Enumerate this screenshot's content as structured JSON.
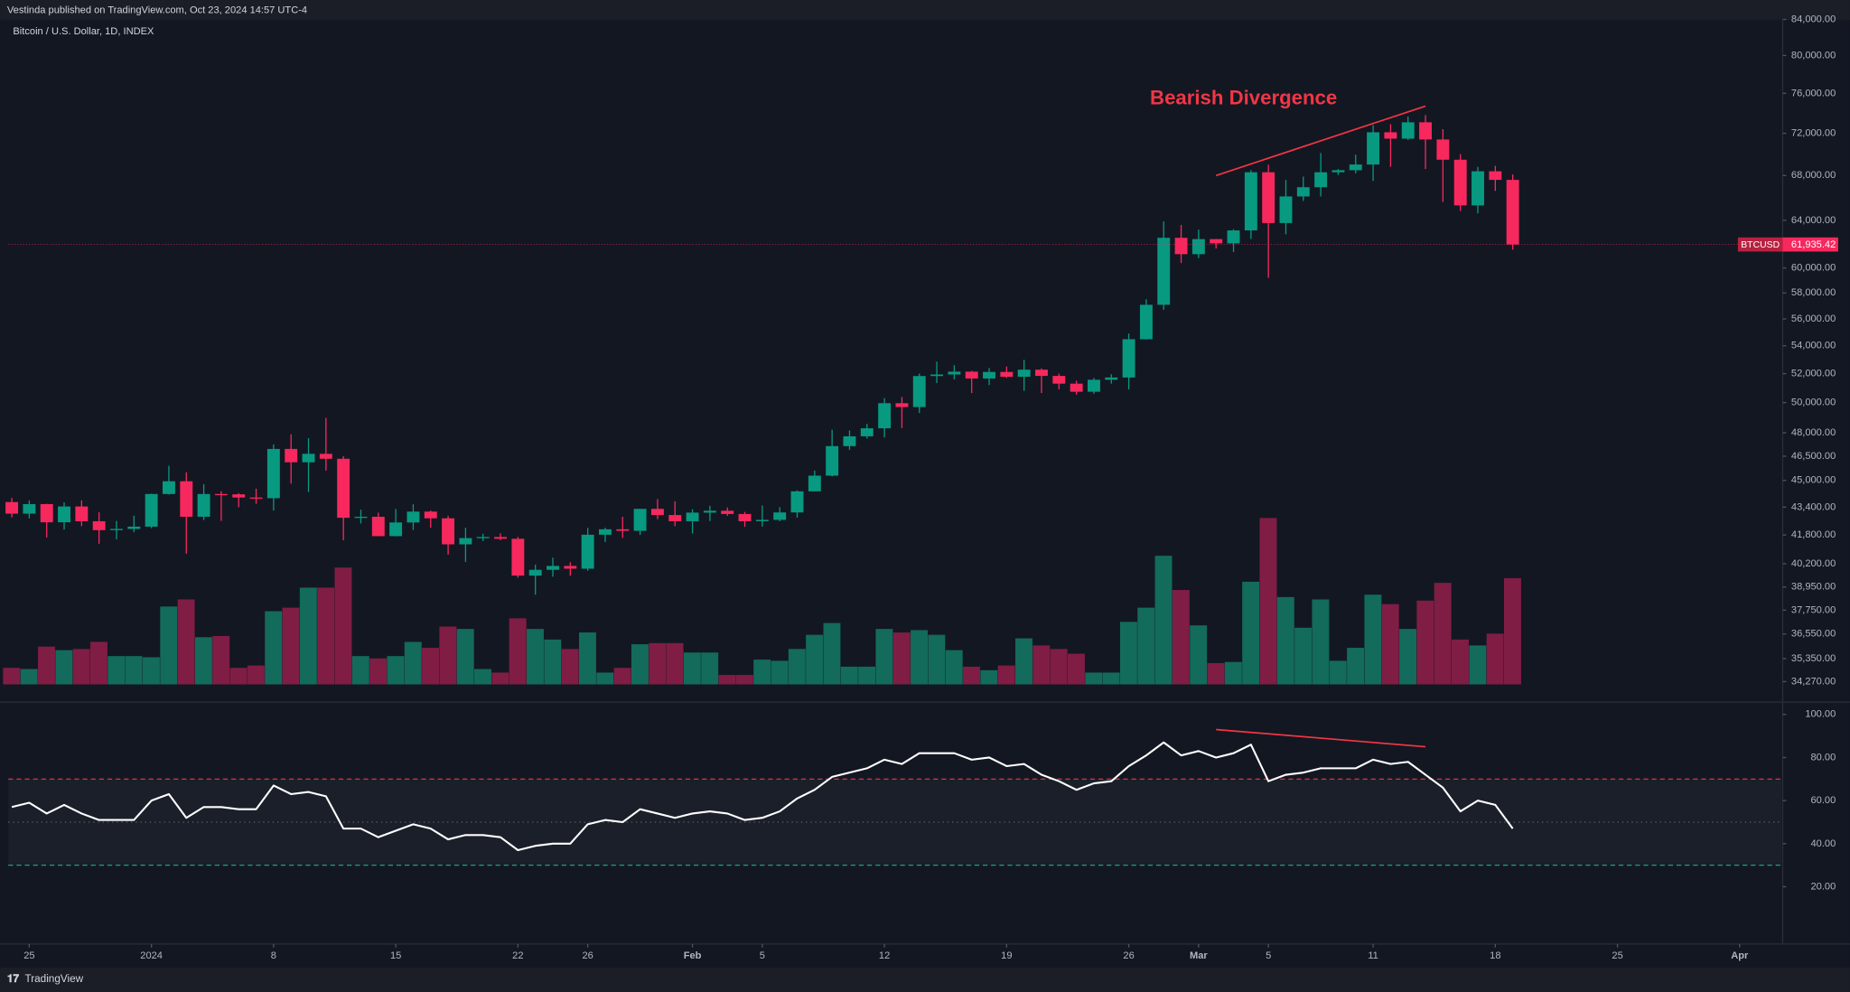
{
  "header": {
    "publisher": "Vestinda published on TradingView.com, Oct 23, 2024 14:57 UTC-4"
  },
  "footer": {
    "brand": "TradingView"
  },
  "chart_data": [
    {
      "type": "candlestick",
      "title": "Bitcoin / U.S. Dollar, 1D, INDEX",
      "symbol": "BTCUSD",
      "last_price_label": "61,935.42",
      "log_scale": true,
      "grid": false,
      "up_color": "#089981",
      "down_color": "#f7285d",
      "xlim": [
        -0.2,
        101.4
      ],
      "xticks": [
        {
          "value": 1,
          "label": "25"
        },
        {
          "value": 8,
          "label": "2024"
        },
        {
          "value": 15,
          "label": "8"
        },
        {
          "value": 22,
          "label": "15"
        },
        {
          "value": 29,
          "label": "22"
        },
        {
          "value": 33,
          "label": "26"
        },
        {
          "value": 39,
          "label": "Feb"
        },
        {
          "value": 43,
          "label": "5"
        },
        {
          "value": 50,
          "label": "12"
        },
        {
          "value": 57,
          "label": "19"
        },
        {
          "value": 64,
          "label": "26"
        },
        {
          "value": 68,
          "label": "Mar"
        },
        {
          "value": 72,
          "label": "5"
        },
        {
          "value": 78,
          "label": "11"
        },
        {
          "value": 85,
          "label": "18"
        },
        {
          "value": 92,
          "label": "25"
        },
        {
          "value": 99,
          "label": "Apr"
        }
      ],
      "ylim": [
        33600,
        83930
      ],
      "yticks": [
        {
          "value": 84000,
          "label": "84,000.00"
        },
        {
          "value": 80000,
          "label": "80,000.00"
        },
        {
          "value": 76000,
          "label": "76,000.00"
        },
        {
          "value": 72000,
          "label": "72,000.00"
        },
        {
          "value": 68000,
          "label": "68,000.00"
        },
        {
          "value": 64000,
          "label": "64,000.00"
        },
        {
          "value": 60000,
          "label": "60,000.00"
        },
        {
          "value": 58000,
          "label": "58,000.00"
        },
        {
          "value": 56000,
          "label": "56,000.00"
        },
        {
          "value": 54000,
          "label": "54,000.00"
        },
        {
          "value": 52000,
          "label": "52,000.00"
        },
        {
          "value": 50000,
          "label": "50,000.00"
        },
        {
          "value": 48000,
          "label": "48,000.00"
        },
        {
          "value": 46500,
          "label": "46,500.00"
        },
        {
          "value": 45000,
          "label": "45,000.00"
        },
        {
          "value": 43400,
          "label": "43,400.00"
        },
        {
          "value": 41800,
          "label": "41,800.00"
        },
        {
          "value": 40200,
          "label": "40,200.00"
        },
        {
          "value": 38950,
          "label": "38,950.00"
        },
        {
          "value": 37750,
          "label": "37,750.00"
        },
        {
          "value": 36550,
          "label": "36,550.00"
        },
        {
          "value": 35350,
          "label": "35,350.00"
        },
        {
          "value": 34270,
          "label": "34,270.00"
        }
      ],
      "open": [
        43700,
        43020,
        43580,
        42520,
        43440,
        42580,
        42070,
        42140,
        42270,
        44180,
        44950,
        42840,
        44180,
        44160,
        43970,
        43930,
        46960,
        46120,
        46650,
        46340,
        42780,
        42840,
        41730,
        42510,
        43140,
        42750,
        41270,
        41620,
        41680,
        41580,
        39560,
        39870,
        40080,
        39930,
        41810,
        42120,
        42030,
        43300,
        42940,
        42580,
        43080,
        43190,
        43000,
        42580,
        42660,
        43090,
        44340,
        45290,
        47140,
        47770,
        48290,
        49960,
        49700,
        51830,
        51940,
        52140,
        51660,
        52120,
        51780,
        52280,
        51840,
        51300,
        50740,
        51570,
        51730,
        54480,
        57080,
        62500,
        61130,
        62390,
        62030,
        63130,
        68300,
        63760,
        66100,
        66930,
        68300,
        68490,
        69020,
        72100,
        71480,
        73080,
        71400,
        69470,
        65300,
        68390,
        67600
      ],
      "high": [
        43950,
        43800,
        43600,
        43680,
        43800,
        43100,
        42600,
        42900,
        44200,
        45900,
        45500,
        44770,
        44350,
        44230,
        44500,
        47250,
        47900,
        47650,
        48970,
        46500,
        43250,
        43080,
        43300,
        43570,
        43200,
        42900,
        42200,
        41870,
        41890,
        41690,
        40150,
        40530,
        40280,
        42200,
        42200,
        42840,
        43300,
        43880,
        43750,
        43280,
        43480,
        43380,
        43120,
        43500,
        43400,
        44400,
        45600,
        48200,
        48150,
        48580,
        50300,
        50380,
        52000,
        52850,
        52600,
        52200,
        52400,
        52500,
        52980,
        52370,
        52000,
        51500,
        51700,
        51960,
        54900,
        57500,
        63900,
        63600,
        63200,
        62400,
        63230,
        68500,
        69000,
        67600,
        67900,
        70100,
        68600,
        69950,
        72800,
        72900,
        73650,
        73800,
        72400,
        70000,
        68800,
        68900,
        68100
      ],
      "low": [
        42800,
        42750,
        41650,
        42100,
        42300,
        41300,
        41550,
        41950,
        42180,
        44150,
        40750,
        42650,
        42600,
        43400,
        43600,
        43200,
        44800,
        44300,
        45600,
        41500,
        42450,
        41720,
        41720,
        42080,
        42200,
        40700,
        40300,
        41450,
        41500,
        39450,
        38550,
        39500,
        39550,
        39820,
        41400,
        41630,
        41800,
        42700,
        42300,
        41880,
        42590,
        42890,
        42260,
        42270,
        42580,
        42790,
        44340,
        45240,
        46900,
        47630,
        47700,
        48300,
        49300,
        51340,
        51600,
        50650,
        51200,
        51700,
        50800,
        50650,
        50900,
        50550,
        50600,
        51300,
        50900,
        54450,
        56700,
        60400,
        60800,
        61600,
        61300,
        62400,
        59200,
        62800,
        65700,
        66100,
        68050,
        68200,
        67500,
        68800,
        71350,
        68600,
        65600,
        64800,
        64600,
        66600,
        61500
      ],
      "close": [
        43020,
        43580,
        42520,
        43440,
        42580,
        42070,
        42140,
        42270,
        44180,
        44950,
        42840,
        44180,
        44160,
        43970,
        43930,
        46960,
        46120,
        46650,
        46340,
        42780,
        42840,
        41730,
        42510,
        43140,
        42750,
        41270,
        41620,
        41680,
        41580,
        39560,
        39870,
        40080,
        39930,
        41810,
        42120,
        42030,
        43300,
        42940,
        42580,
        43080,
        43190,
        43000,
        42580,
        42660,
        43090,
        44340,
        45290,
        47140,
        47770,
        48290,
        49960,
        49700,
        51830,
        51940,
        52140,
        51660,
        52120,
        51780,
        52280,
        51840,
        51300,
        50740,
        51570,
        51730,
        54480,
        57080,
        62500,
        61130,
        62390,
        62030,
        63130,
        68300,
        63760,
        66100,
        66930,
        68300,
        68490,
        69020,
        72100,
        71480,
        73080,
        71400,
        69470,
        65300,
        68390,
        67600,
        61935.42
      ],
      "annotation": {
        "text": "Bearish Divergence",
        "color": "#f23645",
        "x": [
          69,
          81
        ],
        "y": [
          68000,
          74700
        ]
      }
    },
    {
      "type": "volume",
      "up_color": "#136b5b",
      "down_color": "#801d45",
      "values": [
        14,
        13,
        32,
        29,
        30,
        36,
        24,
        24,
        23,
        66,
        72,
        40,
        41,
        14,
        16,
        62,
        65,
        82,
        82,
        99,
        24,
        22,
        24,
        36,
        31,
        49,
        47,
        13,
        10,
        56,
        47,
        38,
        30,
        44,
        10,
        14,
        34,
        35,
        35,
        27,
        27,
        8,
        8,
        21,
        20,
        30,
        42,
        52,
        15,
        15,
        47,
        44,
        46,
        42,
        29,
        15,
        12,
        16,
        39,
        33,
        30,
        26,
        10,
        10,
        53,
        65,
        109,
        80,
        50,
        18,
        19,
        87,
        141,
        74,
        48,
        72,
        20,
        31,
        76,
        68,
        47,
        71,
        86,
        38,
        33,
        43,
        90
      ]
    },
    {
      "type": "rsi",
      "color": "#ffffff",
      "ylim": [
        0,
        103
      ],
      "yticks": [
        {
          "value": 100,
          "label": "100.00"
        },
        {
          "value": 80,
          "label": "80.00"
        },
        {
          "value": 60,
          "label": "60.00"
        },
        {
          "value": 40,
          "label": "40.00"
        },
        {
          "value": 20,
          "label": "20.00"
        }
      ],
      "bands": {
        "upper": 70,
        "middle": 50,
        "lower": 30
      },
      "band_colors": {
        "upper": "#f23645",
        "middle": "#5d606b",
        "lower": "#22ab94"
      },
      "values": [
        57,
        59,
        54,
        58,
        54,
        51,
        51,
        51,
        60,
        63,
        52,
        57,
        57,
        56,
        56,
        67,
        63,
        64,
        62,
        47,
        47,
        43,
        46,
        49,
        47,
        42,
        44,
        44,
        43,
        37,
        39,
        40,
        40,
        49,
        51,
        50,
        56,
        54,
        52,
        54,
        55,
        54,
        51,
        52,
        55,
        61,
        65,
        71,
        73,
        75,
        79,
        77,
        82,
        82,
        82,
        79,
        80,
        76,
        77,
        72,
        69,
        65,
        68,
        69,
        76,
        81,
        87,
        81,
        83,
        80,
        82,
        86,
        69,
        72,
        73,
        75,
        75,
        75,
        79,
        77,
        78,
        72,
        66,
        55,
        60,
        58,
        47
      ],
      "annotation": {
        "color": "#f23645",
        "x": [
          69,
          81
        ],
        "y": [
          93,
          85
        ]
      }
    }
  ]
}
